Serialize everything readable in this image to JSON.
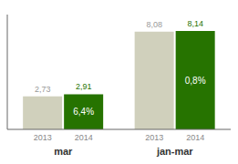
{
  "chart_data": {
    "type": "bar",
    "categories": [
      "mar",
      "jan-mar"
    ],
    "series": [
      {
        "name": "2013",
        "color": "#d0d0bc",
        "values": [
          2.73,
          8.08
        ],
        "value_labels": [
          "2,73",
          "8,08"
        ]
      },
      {
        "name": "2014",
        "color": "#267300",
        "values": [
          2.91,
          8.14
        ],
        "value_labels": [
          "2,91",
          "8,14"
        ]
      }
    ],
    "annotations": [
      "6,4%",
      "0,8%"
    ],
    "ylim": [
      0,
      9.5
    ],
    "data_labels": true,
    "tick_labels": "x",
    "grid": false
  }
}
